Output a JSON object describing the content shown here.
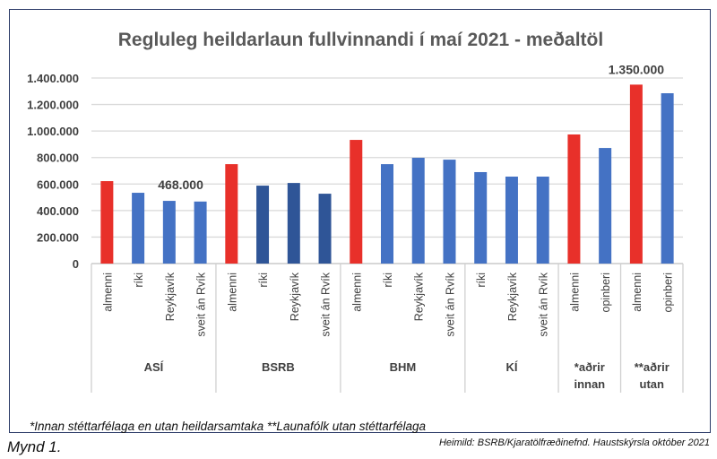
{
  "chart_data": {
    "type": "bar",
    "title": "Regluleg heildarlaun fullvinnandi í maí 2021 - meðaltöl",
    "xlabel": "",
    "ylabel": "",
    "ylim": [
      0,
      1400000
    ],
    "yticks": [
      0,
      200000,
      400000,
      600000,
      800000,
      1000000,
      1200000,
      1400000
    ],
    "ytick_labels": [
      "0",
      "200.000",
      "400.000",
      "600.000",
      "800.000",
      "1.000.000",
      "1.200.000",
      "1.400.000"
    ],
    "grid": true,
    "groups": [
      {
        "name": "ASÍ",
        "categories": [
          "almenni",
          "ríki",
          "Reykjavík",
          "sveit án Rvík"
        ],
        "values": [
          622000,
          534000,
          473000,
          468000
        ],
        "colors": [
          "#e8302a",
          "#4472c4",
          "#4472c4",
          "#4472c4"
        ]
      },
      {
        "name": "BSRB",
        "categories": [
          "almenni",
          "ríki",
          "Reykjavík",
          "sveit án Rvík"
        ],
        "values": [
          750000,
          588000,
          608000,
          527000
        ],
        "colors": [
          "#e8302a",
          "#2f5597",
          "#2f5597",
          "#2f5597"
        ]
      },
      {
        "name": "BHM",
        "categories": [
          "almenni",
          "ríki",
          "Reykjavík",
          "sveit án Rvík"
        ],
        "values": [
          933000,
          750000,
          798000,
          784000
        ],
        "colors": [
          "#e8302a",
          "#4472c4",
          "#4472c4",
          "#4472c4"
        ]
      },
      {
        "name": "KÍ",
        "categories": [
          "ríki",
          "Reykjavík",
          "sveit án Rvík"
        ],
        "values": [
          690000,
          656000,
          656000
        ],
        "colors": [
          "#4472c4",
          "#4472c4",
          "#4472c4"
        ]
      },
      {
        "name": "*aðrir innan",
        "name_lines": [
          "*aðrir",
          "innan"
        ],
        "categories": [
          "almenni",
          "opinberi"
        ],
        "values": [
          974000,
          872000
        ],
        "colors": [
          "#e8302a",
          "#4472c4"
        ]
      },
      {
        "name": "**aðrir utan",
        "name_lines": [
          "**aðrir",
          "utan"
        ],
        "categories": [
          "almenni",
          "opinberi"
        ],
        "values": [
          1350000,
          1285000
        ],
        "colors": [
          "#e8302a",
          "#4472c4"
        ]
      }
    ],
    "annotations": [
      {
        "text": "468.000",
        "group": 0,
        "index": 3
      },
      {
        "text": "1.350.000",
        "group": 5,
        "index": 0
      }
    ]
  },
  "footnote": "*Innan stéttarfélaga en utan heildarsamtaka **Launafólk utan stéttarfélaga",
  "figure_label": "Mynd 1.",
  "source": "Heimild: BSRB/Kjaratölfræðinefnd. Haustskýrsla október 2021"
}
